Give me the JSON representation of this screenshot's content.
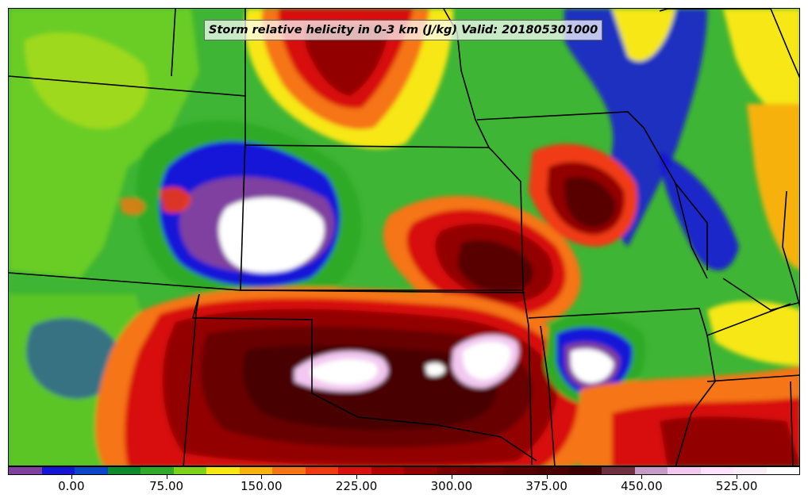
{
  "title": "Storm relative helicity in 0-3 km (J/kg) Valid: 201805301000",
  "colorbar": {
    "colors": [
      "#7f3fa0",
      "#1515d8",
      "#0c46c8",
      "#0d8a2c",
      "#2faa28",
      "#7fd21a",
      "#f7e713",
      "#f7b10f",
      "#f67514",
      "#f03a12",
      "#d81010",
      "#b00000",
      "#930000",
      "#7a0000",
      "#680000",
      "#580000",
      "#4a0000",
      "#3d0000",
      "#6e3040",
      "#c59ac8",
      "#f2c8f0",
      "#ffe2ff",
      "#f8eef8",
      "#ffffff"
    ],
    "tick_labels": [
      "0.00",
      "75.00",
      "150.00",
      "225.00",
      "300.00",
      "375.00",
      "450.00",
      "525.00"
    ],
    "tick_values": [
      0,
      75,
      150,
      225,
      300,
      375,
      450,
      525
    ],
    "range": [
      -50,
      575
    ]
  }
}
